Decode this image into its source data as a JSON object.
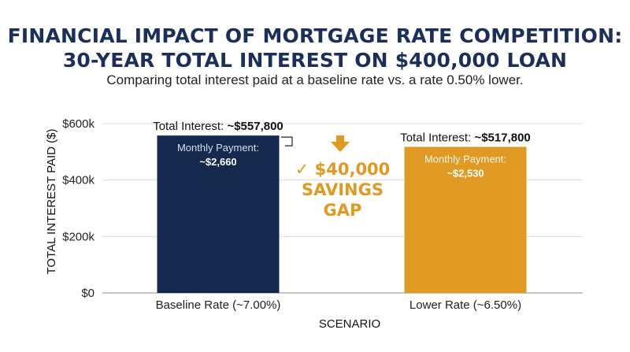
{
  "title_line1": "FINANCIAL IMPACT OF MORTGAGE RATE COMPETITION:",
  "title_line2": "30-YEAR TOTAL INTEREST ON $400,000 LOAN",
  "subtitle": "Comparing total interest paid at a baseline rate vs. a rate 0.50% lower.",
  "colors": {
    "title": "#1b2f5a",
    "baseline_bar": "#15294f",
    "lower_bar": "#e09a23",
    "savings": "#e09a23",
    "grid": "#dddddd"
  },
  "chart_data": {
    "type": "bar",
    "categories": [
      "Baseline Rate (~7.00%)",
      "Lower Rate (~6.50%)"
    ],
    "values": [
      557800,
      517800
    ],
    "ylabel": "TOTAL INTEREST PAID ($)",
    "xlabel": "SCENARIO",
    "ylim": [
      0,
      600000
    ],
    "yticks": [
      0,
      200000,
      400000,
      600000
    ],
    "ytick_labels": [
      "$0",
      "$200k",
      "$400k",
      "$600k"
    ],
    "grid": true,
    "bar_labels": [
      {
        "total_prefix": "Total Interest: ",
        "total_value": "~$557,800",
        "monthly_label": "Monthly Payment:",
        "monthly_value": "~$2,660"
      },
      {
        "total_prefix": "Total Interest: ",
        "total_value": "~$517,800",
        "monthly_label": "Monthly Payment:",
        "monthly_value": "~$2,530"
      }
    ],
    "annotation": {
      "check": "✓",
      "line1": "$40,000",
      "line2": "SAVINGS",
      "line3": "GAP"
    }
  }
}
